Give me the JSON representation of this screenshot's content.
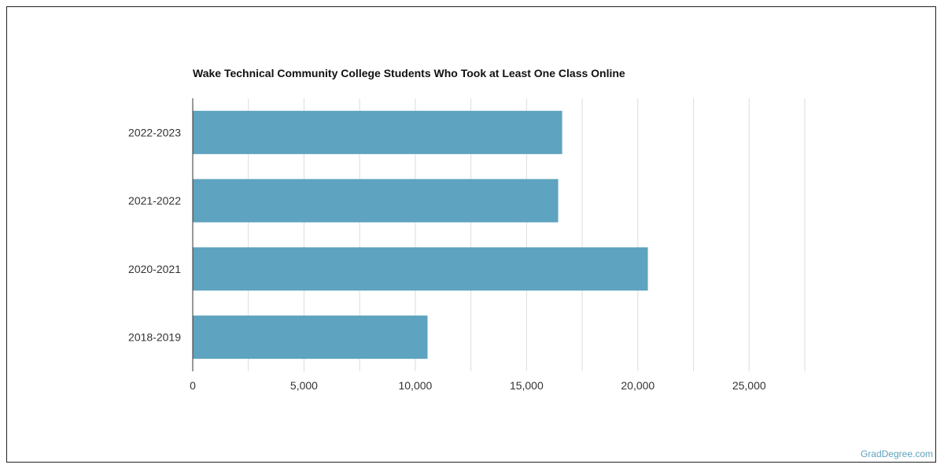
{
  "chart_data": {
    "type": "bar",
    "orientation": "horizontal",
    "title": "Wake Technical Community College Students Who Took at Least One Class Online",
    "categories": [
      "2022-2023",
      "2021-2022",
      "2020-2021",
      "2018-2019"
    ],
    "values": [
      16600,
      16420,
      20450,
      10550
    ],
    "xlim": [
      0,
      27500
    ],
    "x_ticks": [
      0,
      5000,
      10000,
      15000,
      20000,
      25000
    ],
    "x_tick_labels": [
      "0",
      "5,000",
      "10,000",
      "15,000",
      "20,000",
      "25,000"
    ],
    "grid": true,
    "bar_color": "#5ea3bf"
  },
  "watermark": "GradDegree.com"
}
